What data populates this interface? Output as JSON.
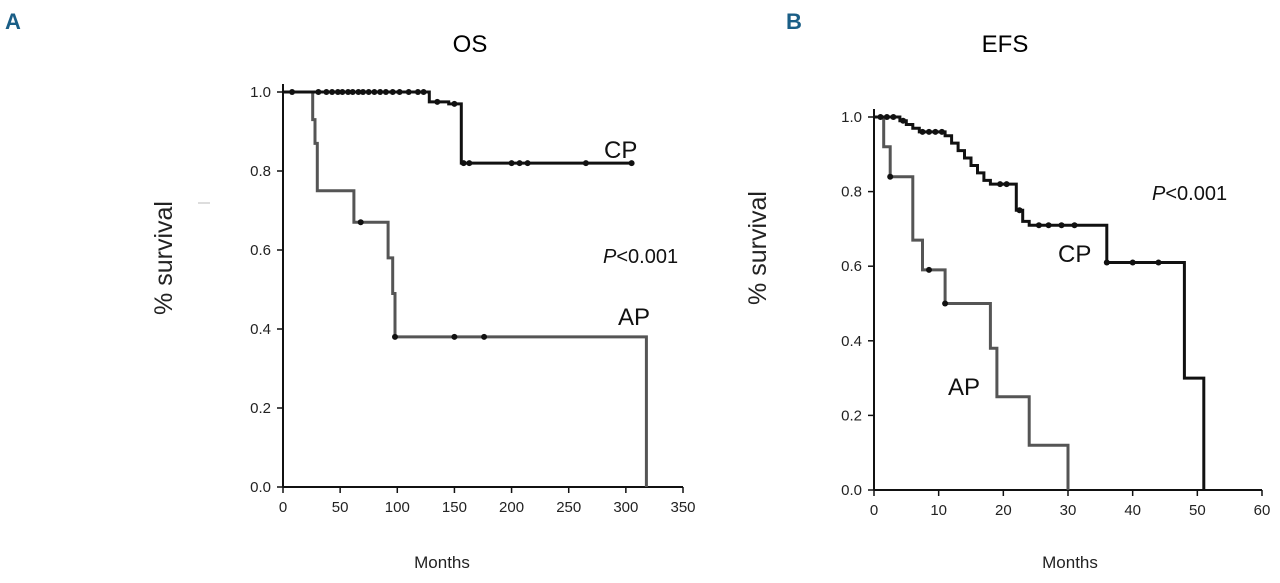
{
  "chart_data": [
    {
      "panel": "A",
      "type": "line",
      "title": "OS",
      "xlabel": "Months",
      "ylabel": "% survival",
      "xlim": [
        0,
        350
      ],
      "ylim": [
        0,
        1.0
      ],
      "xticks": [
        "0",
        "50",
        "100",
        "150",
        "200",
        "250",
        "300",
        "350"
      ],
      "yticks": [
        "0.0",
        "0.2",
        "0.4",
        "0.6",
        "0.8",
        "1.0"
      ],
      "pvalue_italic": "P",
      "pvalue_rest": "<0.001",
      "series": [
        {
          "name": "CP",
          "color": "#111111",
          "steps": [
            [
              0,
              1.0
            ],
            [
              128,
              1.0
            ],
            [
              128,
              0.975
            ],
            [
              145,
              0.975
            ],
            [
              145,
              0.97
            ],
            [
              156,
              0.97
            ],
            [
              156,
              0.82
            ],
            [
              305,
              0.82
            ]
          ],
          "censors": [
            [
              8,
              1.0
            ],
            [
              31,
              1.0
            ],
            [
              38,
              1.0
            ],
            [
              43,
              1.0
            ],
            [
              48,
              1.0
            ],
            [
              52,
              1.0
            ],
            [
              57,
              1.0
            ],
            [
              61,
              1.0
            ],
            [
              66,
              1.0
            ],
            [
              70,
              1.0
            ],
            [
              75,
              1.0
            ],
            [
              80,
              1.0
            ],
            [
              85,
              1.0
            ],
            [
              90,
              1.0
            ],
            [
              96,
              1.0
            ],
            [
              102,
              1.0
            ],
            [
              110,
              1.0
            ],
            [
              118,
              1.0
            ],
            [
              123,
              1.0
            ],
            [
              135,
              0.975
            ],
            [
              150,
              0.97
            ],
            [
              158,
              0.82
            ],
            [
              163,
              0.82
            ],
            [
              200,
              0.82
            ],
            [
              207,
              0.82
            ],
            [
              214,
              0.82
            ],
            [
              265,
              0.82
            ],
            [
              305,
              0.82
            ]
          ]
        },
        {
          "name": "AP",
          "color": "#555555",
          "steps": [
            [
              0,
              1.0
            ],
            [
              26,
              1.0
            ],
            [
              26,
              0.93
            ],
            [
              28,
              0.93
            ],
            [
              28,
              0.87
            ],
            [
              30,
              0.87
            ],
            [
              30,
              0.75
            ],
            [
              62,
              0.75
            ],
            [
              62,
              0.67
            ],
            [
              92,
              0.67
            ],
            [
              92,
              0.58
            ],
            [
              96,
              0.58
            ],
            [
              96,
              0.49
            ],
            [
              98,
              0.49
            ],
            [
              98,
              0.38
            ],
            [
              318,
              0.38
            ],
            [
              318,
              0.0
            ]
          ],
          "censors": [
            [
              68,
              0.67
            ],
            [
              98,
              0.38
            ],
            [
              150,
              0.38
            ],
            [
              176,
              0.38
            ]
          ]
        }
      ]
    },
    {
      "panel": "B",
      "type": "line",
      "title": "EFS",
      "xlabel": "Months",
      "ylabel": "% survival",
      "xlim": [
        0,
        60
      ],
      "ylim": [
        0,
        1.0
      ],
      "xticks": [
        "0",
        "10",
        "20",
        "30",
        "40",
        "50",
        "60"
      ],
      "yticks": [
        "0.0",
        "0.2",
        "0.4",
        "0.6",
        "0.8",
        "1.0"
      ],
      "pvalue_italic": "P",
      "pvalue_rest": "<0.001",
      "series": [
        {
          "name": "CP",
          "color": "#111111",
          "steps": [
            [
              0,
              1.0
            ],
            [
              4,
              1.0
            ],
            [
              4,
              0.99
            ],
            [
              5,
              0.99
            ],
            [
              5,
              0.98
            ],
            [
              6,
              0.98
            ],
            [
              6,
              0.97
            ],
            [
              7,
              0.97
            ],
            [
              7,
              0.96
            ],
            [
              11,
              0.96
            ],
            [
              11,
              0.95
            ],
            [
              12,
              0.95
            ],
            [
              12,
              0.93
            ],
            [
              13,
              0.93
            ],
            [
              13,
              0.91
            ],
            [
              14,
              0.91
            ],
            [
              14,
              0.89
            ],
            [
              15,
              0.89
            ],
            [
              15,
              0.87
            ],
            [
              16,
              0.87
            ],
            [
              16,
              0.85
            ],
            [
              17,
              0.85
            ],
            [
              17,
              0.83
            ],
            [
              18,
              0.83
            ],
            [
              18,
              0.82
            ],
            [
              22,
              0.82
            ],
            [
              22,
              0.75
            ],
            [
              23,
              0.75
            ],
            [
              23,
              0.72
            ],
            [
              24,
              0.72
            ],
            [
              24,
              0.71
            ],
            [
              36,
              0.71
            ],
            [
              36,
              0.61
            ],
            [
              48,
              0.61
            ],
            [
              48,
              0.3
            ],
            [
              51,
              0.3
            ],
            [
              51,
              0.0
            ]
          ],
          "censors": [
            [
              1,
              1.0
            ],
            [
              2,
              1.0
            ],
            [
              3,
              1.0
            ],
            [
              4.5,
              0.99
            ],
            [
              7.5,
              0.96
            ],
            [
              8.5,
              0.96
            ],
            [
              9.5,
              0.96
            ],
            [
              10.5,
              0.96
            ],
            [
              19.5,
              0.82
            ],
            [
              20.5,
              0.82
            ],
            [
              22.5,
              0.75
            ],
            [
              25.5,
              0.71
            ],
            [
              27,
              0.71
            ],
            [
              29,
              0.71
            ],
            [
              31,
              0.71
            ],
            [
              36,
              0.61
            ],
            [
              40,
              0.61
            ],
            [
              44,
              0.61
            ]
          ]
        },
        {
          "name": "AP",
          "color": "#555555",
          "steps": [
            [
              0,
              1.0
            ],
            [
              1.5,
              1.0
            ],
            [
              1.5,
              0.92
            ],
            [
              2.5,
              0.92
            ],
            [
              2.5,
              0.84
            ],
            [
              6,
              0.84
            ],
            [
              6,
              0.67
            ],
            [
              7.5,
              0.67
            ],
            [
              7.5,
              0.59
            ],
            [
              11,
              0.59
            ],
            [
              11,
              0.5
            ],
            [
              18,
              0.5
            ],
            [
              18,
              0.38
            ],
            [
              19,
              0.38
            ],
            [
              19,
              0.25
            ],
            [
              24,
              0.25
            ],
            [
              24,
              0.12
            ],
            [
              30,
              0.12
            ],
            [
              30,
              0.0
            ]
          ],
          "censors": [
            [
              2.5,
              0.84
            ],
            [
              8.5,
              0.59
            ],
            [
              11,
              0.5
            ]
          ]
        }
      ]
    }
  ],
  "panels": [
    {
      "label": "A",
      "color": "#1a5e86"
    },
    {
      "label": "B",
      "color": "#1a5e86"
    }
  ]
}
